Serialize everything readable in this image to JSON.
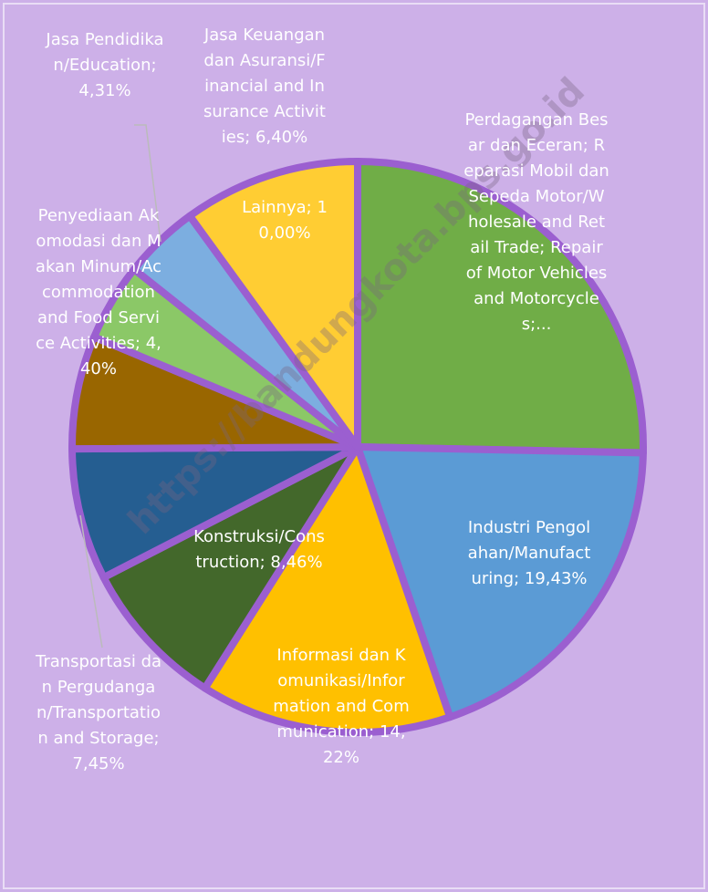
{
  "chart_data": {
    "type": "pie",
    "categories": [
      "Perdagangan Besar dan Eceran; Reparasi Mobil dan Sepeda Motor/Wholesale and Retail Trade; Repair of Motor Vehicles and Motorcycles;...",
      "Industri Pengolahan/Manufacturing;",
      "Informasi dan Komunikasi/Information and Communication;",
      "Konstruksi/Construction;",
      "Transportasi dan Pergudangan/Transportation and Storage;",
      "Jasa Keuangan dan Asuransi/Financial and Insurance Activities;",
      "Penyediaan Akomodasi dan Makan Minum/Accommodation and Food Service Activities;",
      "Jasa Pendidikan/Education;",
      "Lainnya;"
    ],
    "values": [
      25.33,
      19.43,
      14.22,
      8.46,
      7.45,
      6.4,
      4.4,
      4.31,
      10.0
    ],
    "value_labels": [
      null,
      "19,43%",
      "14,22%",
      "8,46%",
      "7,45%",
      "6,40%",
      "4,40%",
      "4,31%",
      "10,00%"
    ],
    "colors": [
      "#70ad47",
      "#5b9bd5",
      "#ffc000",
      "#43682b",
      "#255e91",
      "#996600",
      "#8bc867",
      "#7caee0",
      "#ffcd33"
    ],
    "watermark": "https://bandungkota.bps.go.id"
  }
}
